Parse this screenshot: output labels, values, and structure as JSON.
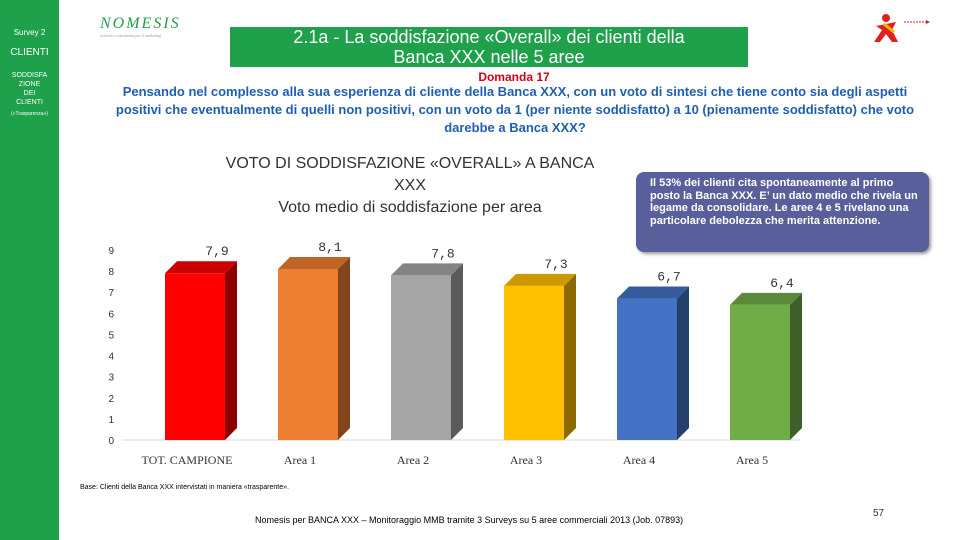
{
  "sidebar": {
    "survey": "Survey 2",
    "section": "CLIENTI",
    "subsection_lines": [
      "SODDISFA",
      "ZIONE",
      "DEI",
      "CLIENTI"
    ],
    "subnote": "(«Trasparenza»)"
  },
  "logo": {
    "text": "NOMESIS",
    "tagline": "ricerche e consulenza per il marketing"
  },
  "title": {
    "line1": "2.1a - La soddisfazione «Overall» dei clienti della",
    "line2": "Banca XXX nelle 5 aree"
  },
  "domanda": "Domanda 17",
  "question": "Pensando nel complesso alla sua esperienza di cliente della Banca XXX, con un voto di sintesi che tiene conto sia degli aspetti positivi che eventualmente di quelli non positivi, con un voto da 1 (per niente soddisfatto) a 10 (pienamente soddisfatto) che voto darebbe a Banca XXX?",
  "callout": "Il 53% dei clienti cita spontaneamente al primo posto la Banca XXX. E’ un dato medio che rivela un legame da consolidare. Le aree 4 e 5 rivelano una particolare debolezza che merita attenzione.",
  "base": "Base: Clienti della Banca XXX intervistati in maniera «trasparente».",
  "footer": "Nomesis per BANCA XXX – Monitoraggio MMB tramite 3 Surveys su 5 aree commerciali 2013 (Job. 07893)",
  "page_number": "57",
  "colors": {
    "brand_green": "#1fa04a",
    "title_red": "#d0021b",
    "question_blue": "#1f5fb0",
    "callout_bg": "#595f9b"
  },
  "chart_data": {
    "type": "bar",
    "title_lines": [
      "VOTO DI SODDISFAZIONE «OVERALL» A BANCA",
      "XXX",
      "Voto medio di soddisfazione per area"
    ],
    "categories": [
      "TOT. CAMPIONE",
      "Area 1",
      "Area 2",
      "Area 3",
      "Area 4",
      "Area 5"
    ],
    "values": [
      7.9,
      8.1,
      7.8,
      7.3,
      6.7,
      6.4
    ],
    "value_labels": [
      "7,9",
      "8,1",
      "7,8",
      "7,3",
      "6,7",
      "6,4"
    ],
    "bar_colors": [
      "#ff0000",
      "#ed7d31",
      "#a5a5a5",
      "#ffc000",
      "#4472c4",
      "#70ad47"
    ],
    "ylim": [
      0,
      9
    ],
    "yticks": [
      0,
      1,
      2,
      3,
      4,
      5,
      6,
      7,
      8,
      9
    ],
    "grid": false,
    "style": "3d-columns"
  }
}
